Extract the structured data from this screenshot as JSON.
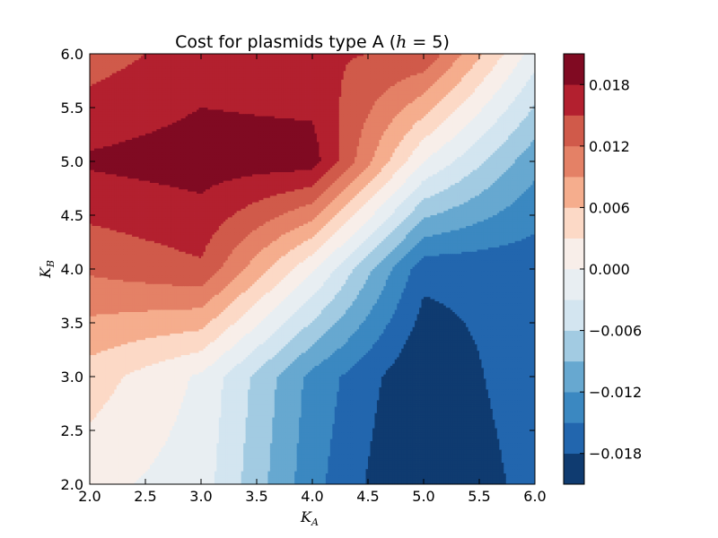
{
  "chart_data": {
    "type": "contourf",
    "title": "Cost for plasmids type A (h = 5)",
    "title_parts": {
      "prefix": "Cost for plasmids type A (",
      "var": "h",
      "suffix": " = 5)"
    },
    "xlabel": {
      "base": "K",
      "sub": "A"
    },
    "ylabel": {
      "base": "K",
      "sub": "B"
    },
    "xlim": [
      2.0,
      6.0
    ],
    "ylim": [
      2.0,
      6.0
    ],
    "xticks": [
      "2.0",
      "2.5",
      "3.0",
      "3.5",
      "4.0",
      "4.5",
      "5.0",
      "5.5",
      "6.0"
    ],
    "yticks": [
      "2.0",
      "2.5",
      "3.0",
      "3.5",
      "4.0",
      "4.5",
      "5.0",
      "5.5",
      "6.0"
    ],
    "x": [
      2.0,
      3.0,
      4.0,
      5.0,
      6.0
    ],
    "y": [
      2.0,
      3.0,
      4.0,
      5.0,
      6.0
    ],
    "z": [
      [
        0.001,
        -0.0015,
        -0.014,
        -0.0225,
        -0.0165
      ],
      [
        0.0045,
        -0.0005,
        -0.013,
        -0.021,
        -0.0155
      ],
      [
        0.0125,
        0.0145,
        0.0005,
        -0.017,
        -0.017
      ],
      [
        0.0185,
        0.0195,
        0.0195,
        0.0,
        -0.011
      ],
      [
        0.0135,
        0.0165,
        0.0155,
        0.0145,
        -0.0015
      ]
    ],
    "levels": [
      -0.021,
      -0.018,
      -0.015,
      -0.012,
      -0.009,
      -0.006,
      -0.003,
      0.0,
      0.003,
      0.006,
      0.009,
      0.012,
      0.015,
      0.018,
      0.021
    ],
    "colors": [
      "#0f3b70",
      "#2266ae",
      "#3b88c1",
      "#67a8d0",
      "#a2cbe2",
      "#d3e5f0",
      "#e8eef2",
      "#f8eee9",
      "#fcd9c6",
      "#f5ad8d",
      "#e48166",
      "#d05a4a",
      "#b3202f",
      "#800a22"
    ],
    "colorbar": {
      "ticks": [
        -0.018,
        -0.012,
        -0.006,
        0.0,
        0.006,
        0.012,
        0.018
      ],
      "tick_labels": [
        "−0.018",
        "−0.012",
        "−0.006",
        "0.000",
        "0.006",
        "0.012",
        "0.018"
      ]
    }
  }
}
